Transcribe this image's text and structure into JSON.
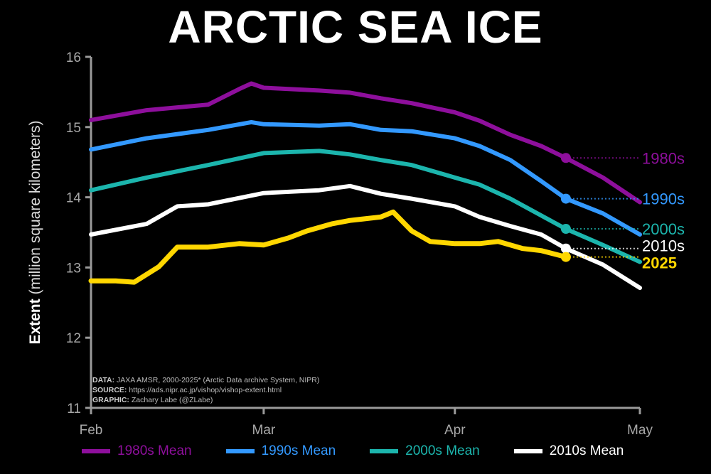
{
  "chart_data": {
    "type": "line",
    "title": "ARCTIC SEA ICE",
    "ylabel_bold": "Extent",
    "ylabel_rest": "(million square kilometers)",
    "xlabel": "",
    "xlim": [
      "2025-02-01",
      "2025-05-01"
    ],
    "ylim": [
      11,
      16
    ],
    "x_ticks": [
      {
        "date": "2025-02-01",
        "label": "Feb"
      },
      {
        "date": "2025-03-01",
        "label": "Mar"
      },
      {
        "date": "2025-04-01",
        "label": "Apr"
      },
      {
        "date": "2025-05-01",
        "label": "May"
      }
    ],
    "y_ticks": [
      11,
      12,
      13,
      14,
      15,
      16
    ],
    "grid": false,
    "legend_position": "bottom",
    "marker_date": "2025-04-19",
    "series": [
      {
        "name": "1980s Mean",
        "label": "1980s",
        "color": "#8e0f9c",
        "points": [
          [
            "2025-02-01",
            15.1
          ],
          [
            "2025-02-10",
            15.24
          ],
          [
            "2025-02-20",
            15.32
          ],
          [
            "2025-02-25",
            15.54
          ],
          [
            "2025-02-27",
            15.62
          ],
          [
            "2025-03-01",
            15.56
          ],
          [
            "2025-03-10",
            15.52
          ],
          [
            "2025-03-15",
            15.49
          ],
          [
            "2025-03-20",
            15.41
          ],
          [
            "2025-03-25",
            15.34
          ],
          [
            "2025-04-01",
            15.21
          ],
          [
            "2025-04-05",
            15.09
          ],
          [
            "2025-04-10",
            14.89
          ],
          [
            "2025-04-15",
            14.73
          ],
          [
            "2025-04-19",
            14.56
          ],
          [
            "2025-04-25",
            14.28
          ],
          [
            "2025-05-01",
            13.93
          ]
        ]
      },
      {
        "name": "1990s Mean",
        "label": "1990s",
        "color": "#3399ff",
        "points": [
          [
            "2025-02-01",
            14.68
          ],
          [
            "2025-02-10",
            14.84
          ],
          [
            "2025-02-20",
            14.96
          ],
          [
            "2025-02-27",
            15.07
          ],
          [
            "2025-03-01",
            15.04
          ],
          [
            "2025-03-10",
            15.02
          ],
          [
            "2025-03-15",
            15.04
          ],
          [
            "2025-03-20",
            14.96
          ],
          [
            "2025-03-25",
            14.94
          ],
          [
            "2025-04-01",
            14.84
          ],
          [
            "2025-04-05",
            14.73
          ],
          [
            "2025-04-10",
            14.53
          ],
          [
            "2025-04-15",
            14.23
          ],
          [
            "2025-04-19",
            13.98
          ],
          [
            "2025-04-25",
            13.77
          ],
          [
            "2025-05-01",
            13.47
          ]
        ]
      },
      {
        "name": "2000s Mean",
        "label": "2000s",
        "color": "#1cb5ad",
        "points": [
          [
            "2025-02-01",
            14.1
          ],
          [
            "2025-02-10",
            14.28
          ],
          [
            "2025-02-20",
            14.46
          ],
          [
            "2025-03-01",
            14.63
          ],
          [
            "2025-03-10",
            14.66
          ],
          [
            "2025-03-15",
            14.61
          ],
          [
            "2025-03-20",
            14.53
          ],
          [
            "2025-03-25",
            14.46
          ],
          [
            "2025-04-01",
            14.28
          ],
          [
            "2025-04-05",
            14.18
          ],
          [
            "2025-04-10",
            13.98
          ],
          [
            "2025-04-15",
            13.74
          ],
          [
            "2025-04-19",
            13.55
          ],
          [
            "2025-04-25",
            13.32
          ],
          [
            "2025-05-01",
            13.08
          ]
        ]
      },
      {
        "name": "2010s Mean",
        "label": "2010s",
        "color": "#ffffff",
        "points": [
          [
            "2025-02-01",
            13.47
          ],
          [
            "2025-02-10",
            13.62
          ],
          [
            "2025-02-15",
            13.87
          ],
          [
            "2025-02-20",
            13.9
          ],
          [
            "2025-03-01",
            14.06
          ],
          [
            "2025-03-10",
            14.1
          ],
          [
            "2025-03-15",
            14.16
          ],
          [
            "2025-03-20",
            14.05
          ],
          [
            "2025-03-25",
            13.98
          ],
          [
            "2025-04-01",
            13.87
          ],
          [
            "2025-04-05",
            13.72
          ],
          [
            "2025-04-10",
            13.59
          ],
          [
            "2025-04-15",
            13.47
          ],
          [
            "2025-04-19",
            13.27
          ],
          [
            "2025-04-25",
            13.04
          ],
          [
            "2025-05-01",
            12.71
          ]
        ]
      },
      {
        "name": "2025",
        "label": "2025",
        "color": "#ffd700",
        "points": [
          [
            "2025-02-01",
            12.81
          ],
          [
            "2025-02-05",
            12.81
          ],
          [
            "2025-02-08",
            12.79
          ],
          [
            "2025-02-12",
            13.01
          ],
          [
            "2025-02-15",
            13.29
          ],
          [
            "2025-02-20",
            13.29
          ],
          [
            "2025-02-25",
            13.34
          ],
          [
            "2025-03-01",
            13.32
          ],
          [
            "2025-03-05",
            13.42
          ],
          [
            "2025-03-08",
            13.52
          ],
          [
            "2025-03-12",
            13.62
          ],
          [
            "2025-03-15",
            13.67
          ],
          [
            "2025-03-20",
            13.72
          ],
          [
            "2025-03-22",
            13.79
          ],
          [
            "2025-03-25",
            13.52
          ],
          [
            "2025-03-28",
            13.37
          ],
          [
            "2025-04-01",
            13.34
          ],
          [
            "2025-04-05",
            13.34
          ],
          [
            "2025-04-08",
            13.37
          ],
          [
            "2025-04-12",
            13.27
          ],
          [
            "2025-04-15",
            13.24
          ],
          [
            "2025-04-19",
            13.15
          ]
        ]
      }
    ]
  },
  "credits": {
    "data_label": "DATA:",
    "data": "JAXA AMSR, 2000-2025* (Arctic Data archive System, NIPR)",
    "source_label": "SOURCE:",
    "source": "https://ads.nipr.ac.jp/vishop/vishop-extent.html",
    "graphic_label": "GRAPHIC:",
    "graphic": "Zachary Labe (@ZLabe)"
  }
}
